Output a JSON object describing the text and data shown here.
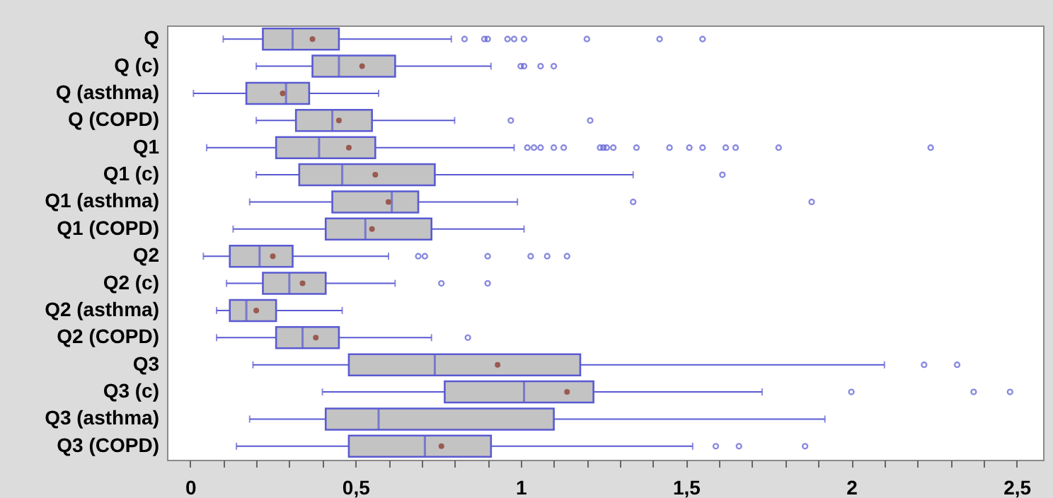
{
  "chart_data": {
    "type": "box",
    "orientation": "horizontal",
    "categories": [
      "Q",
      "Q (c)",
      "Q (asthma)",
      "Q (COPD)",
      "Q1",
      "Q1 (c)",
      "Q1 (asthma)",
      "Q1 (COPD)",
      "Q2",
      "Q2 (c)",
      "Q2 (asthma)",
      "Q2 (COPD)",
      "Q3",
      "Q3 (c)",
      "Q3 (asthma)",
      "Q3 (COPD)"
    ],
    "xlim": [
      -0.07,
      2.58
    ],
    "xticks": [
      0,
      {
        "value": 0.1,
        "label": null
      },
      {
        "value": 0.2,
        "label": null
      },
      {
        "value": 0.3,
        "label": null
      },
      {
        "value": 0.4,
        "label": null
      },
      {
        "value": 0.5,
        "label": "0,5"
      },
      {
        "value": 0.6,
        "label": null
      },
      {
        "value": 0.7,
        "label": null
      },
      {
        "value": 0.8,
        "label": null
      },
      {
        "value": 0.9,
        "label": null
      },
      1,
      {
        "value": 1.1,
        "label": null
      },
      {
        "value": 1.2,
        "label": null
      },
      {
        "value": 1.3,
        "label": null
      },
      {
        "value": 1.4,
        "label": null
      },
      {
        "value": 1.5,
        "label": "1,5"
      },
      {
        "value": 1.6,
        "label": null
      },
      {
        "value": 1.7,
        "label": null
      },
      {
        "value": 1.8,
        "label": null
      },
      {
        "value": 1.9,
        "label": null
      },
      2,
      {
        "value": 2.1,
        "label": null
      },
      {
        "value": 2.2,
        "label": null
      },
      {
        "value": 2.3,
        "label": null
      },
      {
        "value": 2.4,
        "label": null
      },
      {
        "value": 2.5,
        "label": "2,5"
      }
    ],
    "grid": false,
    "series": [
      {
        "color": "#5a5ad2",
        "boxes": [
          {
            "low": 0.1,
            "q1": 0.22,
            "median": 0.31,
            "q3": 0.45,
            "high": 0.79,
            "mean": 0.37,
            "outliers": [
              0.83,
              0.89,
              0.9,
              0.96,
              0.98,
              1.01,
              1.2,
              1.42,
              1.55
            ]
          },
          {
            "low": 0.2,
            "q1": 0.37,
            "median": 0.45,
            "q3": 0.62,
            "high": 0.91,
            "mean": 0.52,
            "outliers": [
              1.0,
              1.01,
              1.06,
              1.1
            ]
          },
          {
            "low": 0.01,
            "q1": 0.17,
            "median": 0.29,
            "q3": 0.36,
            "high": 0.57,
            "mean": 0.28
          },
          {
            "low": 0.2,
            "q1": 0.32,
            "median": 0.43,
            "q3": 0.55,
            "high": 0.8,
            "mean": 0.45,
            "outliers": [
              0.97,
              1.21
            ]
          },
          {
            "low": 0.05,
            "q1": 0.26,
            "median": 0.39,
            "q3": 0.56,
            "high": 0.98,
            "mean": 0.48,
            "outliers": [
              1.02,
              1.04,
              1.06,
              1.1,
              1.13,
              1.24,
              1.25,
              1.26,
              1.28,
              1.35,
              1.45,
              1.51,
              1.55,
              1.62,
              1.65,
              1.78,
              2.24
            ]
          },
          {
            "low": 0.2,
            "q1": 0.33,
            "median": 0.46,
            "q3": 0.74,
            "high": 1.34,
            "mean": 0.56,
            "outliers": [
              1.61
            ]
          },
          {
            "low": 0.18,
            "q1": 0.43,
            "median": 0.61,
            "q3": 0.69,
            "high": 0.99,
            "mean": 0.6,
            "outliers": [
              1.34,
              1.88
            ]
          },
          {
            "low": 0.13,
            "q1": 0.41,
            "median": 0.53,
            "q3": 0.73,
            "high": 1.01,
            "mean": 0.55
          },
          {
            "low": 0.04,
            "q1": 0.12,
            "median": 0.21,
            "q3": 0.31,
            "high": 0.6,
            "mean": 0.25,
            "outliers": [
              0.69,
              0.71,
              0.9,
              1.03,
              1.08,
              1.14
            ]
          },
          {
            "low": 0.11,
            "q1": 0.22,
            "median": 0.3,
            "q3": 0.41,
            "high": 0.62,
            "mean": 0.34,
            "outliers": [
              0.76,
              0.9
            ]
          },
          {
            "low": 0.08,
            "q1": 0.12,
            "median": 0.17,
            "q3": 0.26,
            "high": 0.46,
            "mean": 0.2
          },
          {
            "low": 0.08,
            "q1": 0.26,
            "median": 0.34,
            "q3": 0.45,
            "high": 0.73,
            "mean": 0.38,
            "outliers": [
              0.84
            ]
          },
          {
            "low": 0.19,
            "q1": 0.48,
            "median": 0.74,
            "q3": 1.18,
            "high": 2.1,
            "mean": 0.93,
            "outliers": [
              2.22,
              2.32
            ]
          },
          {
            "low": 0.4,
            "q1": 0.77,
            "median": 1.01,
            "q3": 1.22,
            "high": 1.73,
            "mean": 1.14,
            "outliers": [
              2.0,
              2.37,
              2.48
            ]
          },
          {
            "low": 0.18,
            "q1": 0.41,
            "median": 0.57,
            "q3": 1.1,
            "high": 1.92
          },
          {
            "low": 0.14,
            "q1": 0.48,
            "median": 0.71,
            "q3": 0.91,
            "high": 1.52,
            "mean": 0.76,
            "outliers": [
              1.59,
              1.66,
              1.86
            ]
          }
        ]
      }
    ]
  }
}
